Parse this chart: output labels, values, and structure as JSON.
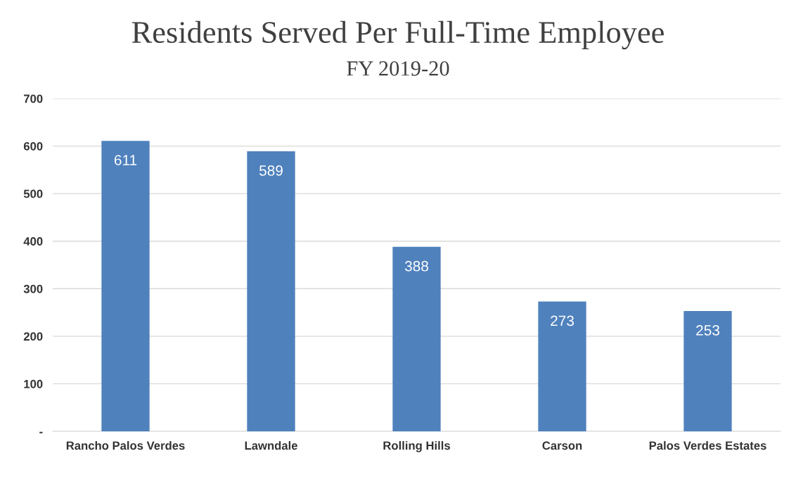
{
  "chart_data": {
    "type": "bar",
    "title": "Residents Served Per Full-Time Employee",
    "subtitle": "FY 2019-20",
    "categories": [
      "Rancho Palos Verdes",
      "Lawndale",
      "Rolling Hills",
      "Carson",
      "Palos Verdes Estates"
    ],
    "values": [
      611,
      589,
      388,
      273,
      253
    ],
    "color": "#4f81bd",
    "ylim": [
      0,
      700
    ],
    "yticks": [
      {
        "value": 0,
        "label": "-"
      },
      100,
      200,
      300,
      400,
      500,
      600,
      700
    ],
    "grid": "y",
    "data_labels": true
  }
}
